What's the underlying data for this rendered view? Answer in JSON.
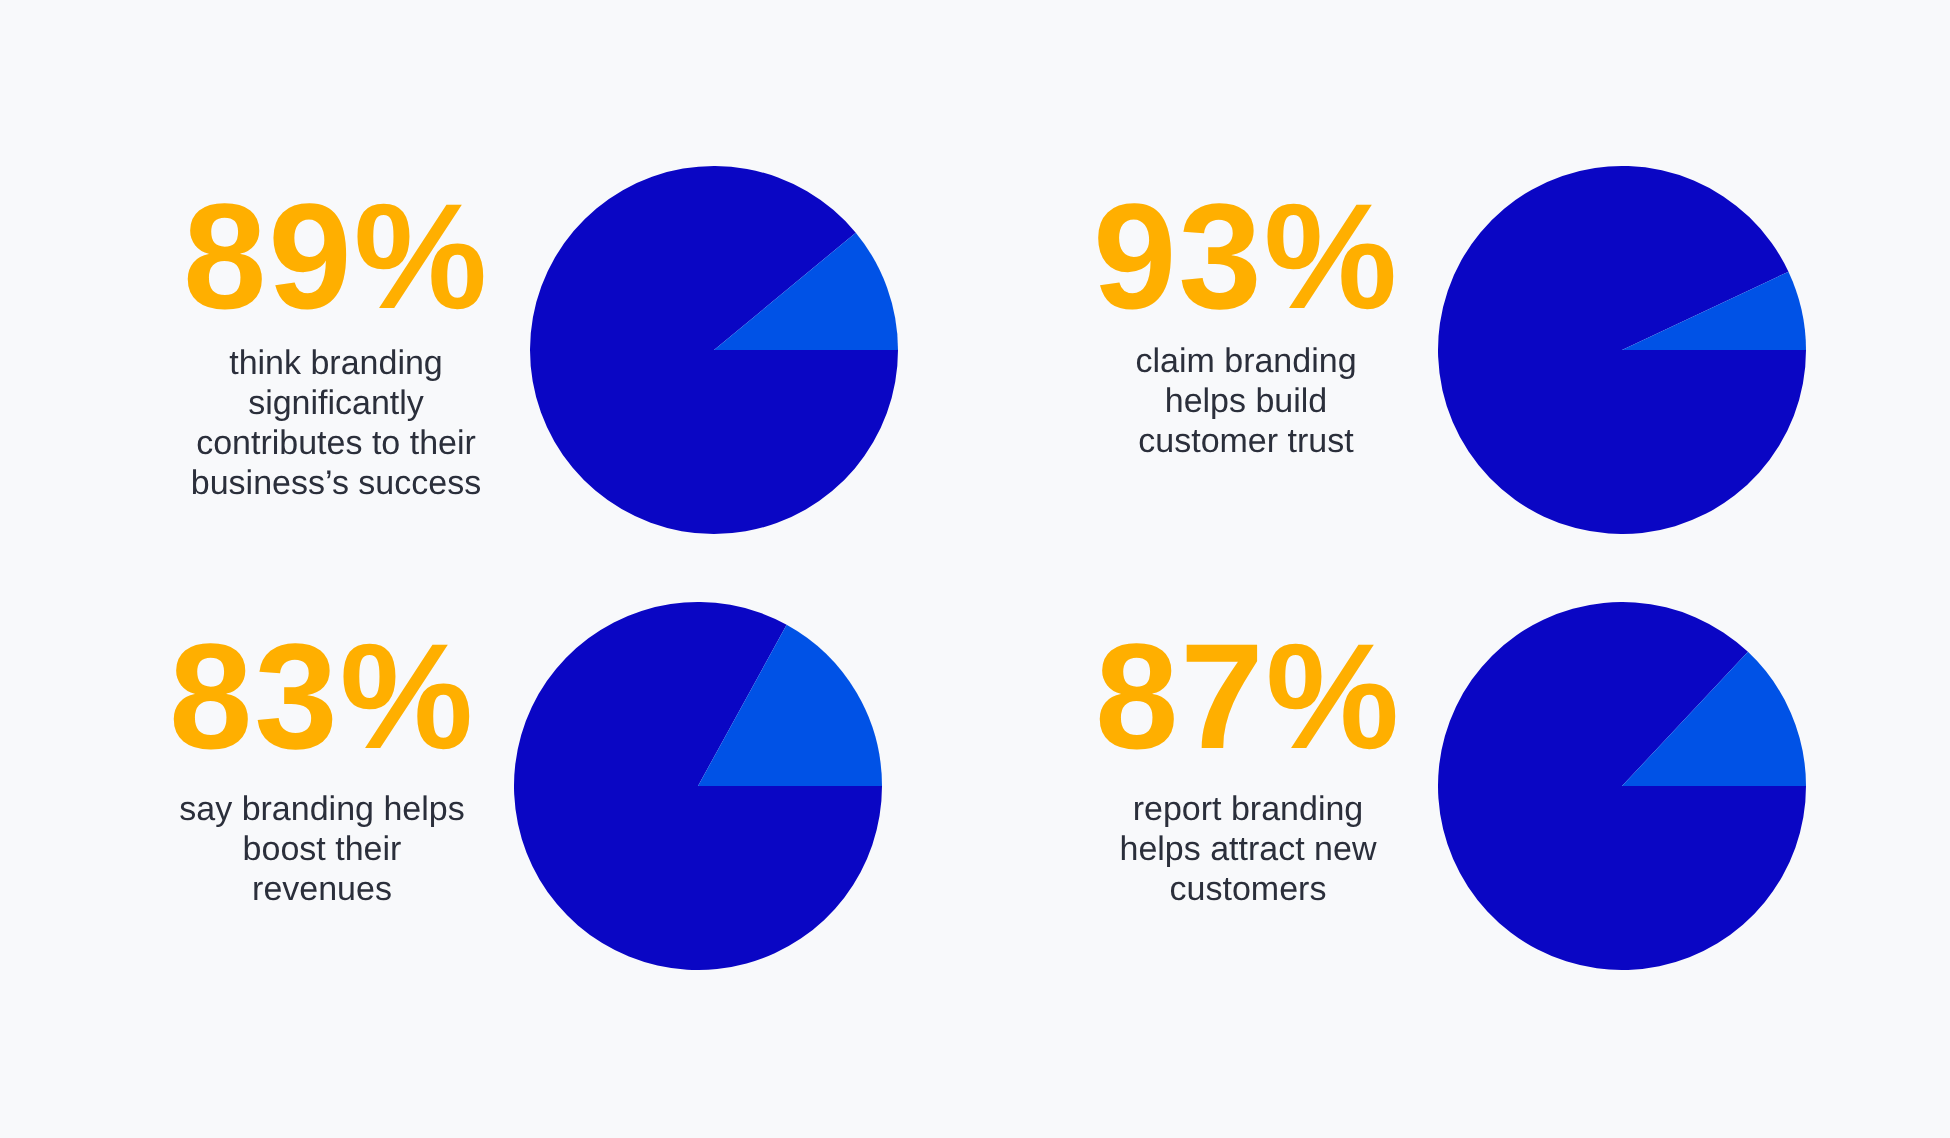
{
  "chart_data": [
    {
      "type": "pie",
      "title": "89%",
      "subtitle": "think branding\nsignificantly\ncontributes to their\nbusiness’s success",
      "categories": [
        null,
        null
      ],
      "values": [
        89,
        11
      ],
      "colors": [
        "#0a06c4",
        "#0052e6"
      ]
    },
    {
      "type": "pie",
      "title": "93%",
      "subtitle": "claim branding\nhelps build\ncustomer trust",
      "categories": [
        null,
        null
      ],
      "values": [
        93,
        7
      ],
      "colors": [
        "#0a06c4",
        "#0052e6"
      ]
    },
    {
      "type": "pie",
      "title": "83%",
      "subtitle": "say branding helps\nboost their\nrevenues",
      "categories": [
        null,
        null
      ],
      "values": [
        83,
        17
      ],
      "colors": [
        "#0a06c4",
        "#0052e6"
      ]
    },
    {
      "type": "pie",
      "title": "87%",
      "subtitle": "report branding\nhelps attract new\ncustomers",
      "categories": [
        null,
        null
      ],
      "values": [
        87,
        13
      ],
      "colors": [
        "#0a06c4",
        "#0052e6"
      ]
    }
  ]
}
